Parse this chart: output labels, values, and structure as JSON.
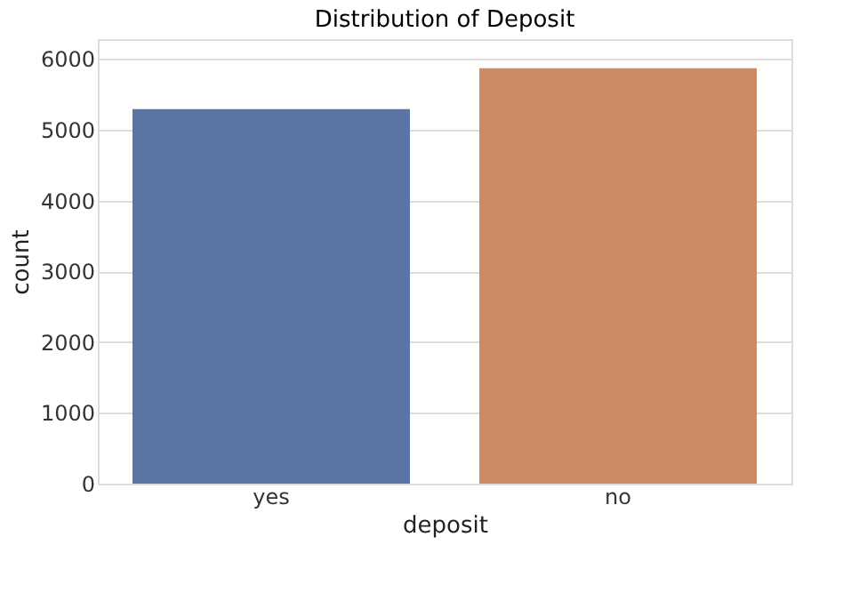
{
  "chart_data": {
    "type": "bar",
    "title": "Distribution of Deposit",
    "xlabel": "deposit",
    "ylabel": "count",
    "categories": [
      "yes",
      "no"
    ],
    "values": [
      5290,
      5870
    ],
    "colors": [
      "#5975a4",
      "#cc8963"
    ],
    "ylim": [
      0,
      6280
    ],
    "yticks": [
      0,
      1000,
      2000,
      3000,
      4000,
      5000,
      6000
    ],
    "grid": "y"
  }
}
